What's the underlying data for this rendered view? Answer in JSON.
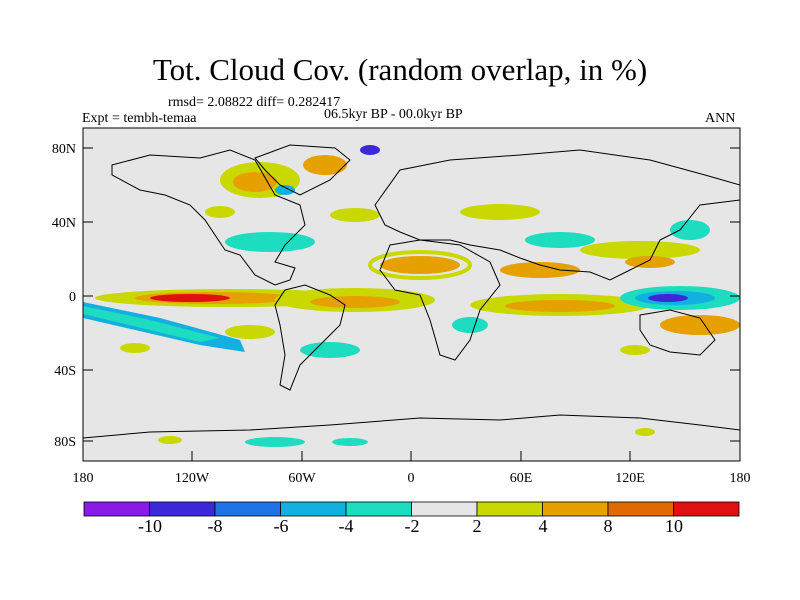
{
  "title": "Tot. Cloud Cov. (random overlap, in %)",
  "stats": "rmsd= 2.08822 diff= 0.282417",
  "experiment": "Expt = tembh-temaa",
  "period": "06.5kyr BP - 00.0kyr BP",
  "season": "ANN",
  "y_ticks": [
    "80N",
    "40N",
    "0",
    "40S",
    "80S"
  ],
  "x_ticks": [
    "180",
    "120W",
    "60W",
    "0",
    "60E",
    "120E",
    "180"
  ],
  "colorbar": {
    "labels": [
      "-10",
      "-8",
      "-6",
      "-4",
      "-2",
      "2",
      "4",
      "8",
      "10"
    ],
    "colors": [
      "#8c1ae6",
      "#3b28d8",
      "#1e74e6",
      "#11b0e0",
      "#1edcc0",
      "#e6e6e6",
      "#c8d800",
      "#e6a000",
      "#e06a00",
      "#e01010"
    ]
  }
}
